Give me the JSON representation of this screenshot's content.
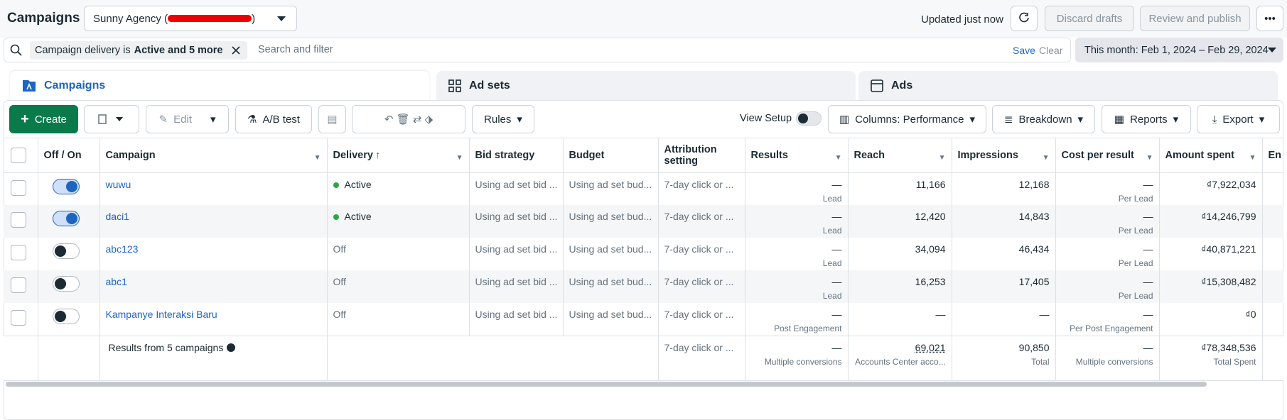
{
  "header": {
    "title": "Campaigns",
    "account": "Sunny Agency (",
    "account_end": ")",
    "status": "Updated just now",
    "discard": "Discard drafts",
    "publish": "Review and publish"
  },
  "filter": {
    "chip_prefix": "Campaign delivery is",
    "chip_bold": "Active and 5 more",
    "placeholder": "Search and filter",
    "save": "Save",
    "clear": "Clear",
    "date": "This month: Feb 1, 2024 – Feb 29, 2024"
  },
  "tabs": [
    "Campaigns",
    "Ad sets",
    "Ads"
  ],
  "toolbar": {
    "create": "Create",
    "edit": "Edit",
    "ab_test": "A/B test",
    "rules": "Rules",
    "view_setup": "View Setup",
    "columns": "Columns: Performance",
    "breakdown": "Breakdown",
    "reports": "Reports",
    "export": "Export"
  },
  "table": {
    "columns": [
      "Off / On",
      "Campaign",
      "Delivery",
      "Bid strategy",
      "Budget",
      "Attribution setting",
      "Results",
      "Reach",
      "Impressions",
      "Cost per result",
      "Amount spent",
      "En"
    ],
    "rows": [
      {
        "on": true,
        "name": "wuwu",
        "delivery": "Active",
        "bid": "Using ad set bid ...",
        "budget": "Using ad set bud...",
        "attribution": "7-day click or ...",
        "results": "—",
        "results_sub": "Lead",
        "reach": "11,166",
        "impressions": "12,168",
        "cpr": "—",
        "cpr_sub": "Per Lead",
        "spent": "₫7,922,034"
      },
      {
        "on": true,
        "name": "daci1",
        "delivery": "Active",
        "bid": "Using ad set bid ...",
        "budget": "Using ad set bud...",
        "attribution": "7-day click or ...",
        "results": "—",
        "results_sub": "Lead",
        "reach": "12,420",
        "impressions": "14,843",
        "cpr": "—",
        "cpr_sub": "Per Lead",
        "spent": "₫14,246,799"
      },
      {
        "on": false,
        "name": "abc123",
        "delivery": "Off",
        "bid": "Using ad set bid ...",
        "budget": "Using ad set bud...",
        "attribution": "7-day click or ...",
        "results": "—",
        "results_sub": "Lead",
        "reach": "34,094",
        "impressions": "46,434",
        "cpr": "—",
        "cpr_sub": "Per Lead",
        "spent": "₫40,871,221"
      },
      {
        "on": false,
        "name": "abc1",
        "delivery": "Off",
        "bid": "Using ad set bid ...",
        "budget": "Using ad set bud...",
        "attribution": "7-day click or ...",
        "results": "—",
        "results_sub": "Lead",
        "reach": "16,253",
        "impressions": "17,405",
        "cpr": "—",
        "cpr_sub": "Per Lead",
        "spent": "₫15,308,482"
      },
      {
        "on": false,
        "name": "Kampanye Interaksi Baru",
        "delivery": "Off",
        "bid": "Using ad set bid ...",
        "budget": "Using ad set bud...",
        "attribution": "7-day click or ...",
        "results": "—",
        "results_sub": "Post Engagement",
        "reach": "—",
        "impressions": "—",
        "cpr": "—",
        "cpr_sub": "Per Post Engagement",
        "spent": "₫0"
      }
    ],
    "summary": {
      "label": "Results from 5 campaigns",
      "attribution": "7-day click or ...",
      "results": "—",
      "results_sub": "Multiple conversions",
      "reach": "69,021",
      "reach_sub": "Accounts Center acco...",
      "impressions": "90,850",
      "impressions_sub": "Total",
      "cpr": "—",
      "cpr_sub": "Multiple conversions",
      "spent": "₫78,348,536",
      "spent_sub": "Total Spent"
    }
  }
}
